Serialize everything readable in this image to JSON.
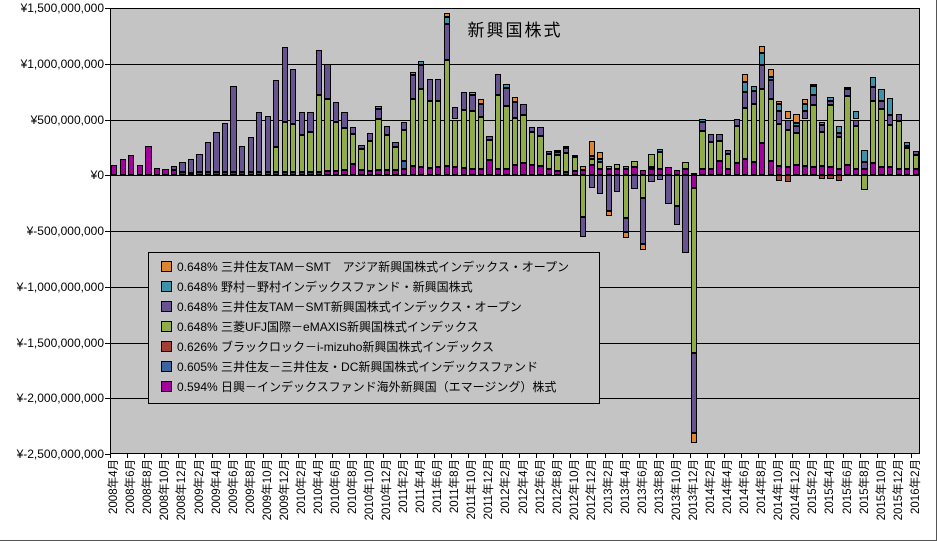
{
  "title": "新興国株式",
  "y_axis": {
    "prefix": "¥",
    "labels": [
      "¥1,500,000,000",
      "¥1,000,000,000",
      "¥500,000,000",
      "¥0",
      "¥-500,000,000",
      "¥-1,000,000,000",
      "¥-1,500,000,000",
      "¥-2,000,000,000",
      "¥-2,500,000,000"
    ],
    "values": [
      1500,
      1000,
      500,
      0,
      -500,
      -1000,
      -1500,
      -2000,
      -2500
    ]
  },
  "x_axis": {
    "label_every_n_categories": 2,
    "first_label": "2008年4月",
    "last_label": "2016年2月"
  },
  "legend": [
    {
      "rate": "0.648%",
      "name": "三井住友TAM－SMT　アジア新興国株式インデックス・オープン",
      "color": "#DE8531",
      "series_key": "smt_asia"
    },
    {
      "rate": "0.648%",
      "name": "野村－野村インデックスファンド・新興国株式",
      "color": "#3B92A9",
      "series_key": "nomura"
    },
    {
      "rate": "0.648%",
      "name": "三井住友TAM－SMT新興国株式インデックス・オープン",
      "color": "#66538F",
      "series_key": "smt"
    },
    {
      "rate": "0.648%",
      "name": "三菱UFJ国際－eMAXIS新興国株式インデックス",
      "color": "#8FAC49",
      "series_key": "emaxis"
    },
    {
      "rate": "0.626%",
      "name": "ブラックロック－i-mizuho新興国株式インデックス",
      "color": "#A43E35",
      "series_key": "mizuho"
    },
    {
      "rate": "0.605%",
      "name": "三井住友－三井住友・DC新興国株式インデックスファンド",
      "color": "#3C65A0",
      "series_key": "dc"
    },
    {
      "rate": "0.594%",
      "name": "日興－インデックスファンド海外新興国（エマージング）株式",
      "color": "#A4009B",
      "series_key": "nikko"
    }
  ],
  "chart_data": {
    "type": "bar",
    "stacked": true,
    "unit": "JPY millions (¥1,000,000)",
    "title": "新興国株式",
    "ylim_millions": [
      -2500,
      1500
    ],
    "grid": true,
    "plot_background": "#C4C4C4",
    "legend_position": "inside-left-middle",
    "categories": [
      "2008年4月",
      "2008年5月",
      "2008年6月",
      "2008年7月",
      "2008年8月",
      "2008年9月",
      "2008年10月",
      "2008年11月",
      "2008年12月",
      "2009年1月",
      "2009年2月",
      "2009年3月",
      "2009年4月",
      "2009年5月",
      "2009年6月",
      "2009年7月",
      "2009年8月",
      "2009年9月",
      "2009年10月",
      "2009年11月",
      "2009年12月",
      "2010年1月",
      "2010年2月",
      "2010年3月",
      "2010年4月",
      "2010年5月",
      "2010年6月",
      "2010年7月",
      "2010年8月",
      "2010年9月",
      "2010年10月",
      "2010年11月",
      "2010年12月",
      "2011年1月",
      "2011年2月",
      "2011年3月",
      "2011年4月",
      "2011年5月",
      "2011年6月",
      "2011年7月",
      "2011年8月",
      "2011年9月",
      "2011年10月",
      "2011年11月",
      "2011年12月",
      "2012年1月",
      "2012年2月",
      "2012年3月",
      "2012年4月",
      "2012年5月",
      "2012年6月",
      "2012年7月",
      "2012年8月",
      "2012年9月",
      "2012年10月",
      "2012年11月",
      "2012年12月",
      "2013年1月",
      "2013年2月",
      "2013年3月",
      "2013年4月",
      "2013年5月",
      "2013年6月",
      "2013年7月",
      "2013年8月",
      "2013年9月",
      "2013年10月",
      "2013年11月",
      "2013年12月",
      "2014年1月",
      "2014年2月",
      "2014年3月",
      "2014年4月",
      "2014年5月",
      "2014年6月",
      "2014年7月",
      "2014年8月",
      "2014年9月",
      "2014年10月",
      "2014年11月",
      "2014年12月",
      "2015年1月",
      "2015年2月",
      "2015年3月",
      "2015年4月",
      "2015年5月",
      "2015年6月",
      "2015年7月",
      "2015年8月",
      "2015年9月",
      "2015年10月",
      "2015年11月",
      "2015年12月",
      "2016年1月",
      "2016年2月"
    ],
    "series": [
      {
        "name": "日興－インデックスファンド海外新興国（エマージング）株式",
        "color": "#A4009B",
        "values": [
          90,
          145,
          185,
          95,
          265,
          65,
          55,
          45,
          25,
          20,
          25,
          25,
          25,
          30,
          30,
          25,
          25,
          25,
          25,
          30,
          30,
          30,
          25,
          25,
          30,
          35,
          40,
          45,
          100,
          45,
          40,
          45,
          45,
          50,
          60,
          85,
          70,
          65,
          70,
          80,
          70,
          65,
          60,
          55,
          140,
          60,
          60,
          90,
          110,
          90,
          80,
          60,
          35,
          30,
          40,
          50,
          90,
          60,
          60,
          60,
          60,
          70,
          50,
          60,
          60,
          70,
          50,
          60,
          -110,
          60,
          60,
          130,
          60,
          110,
          150,
          120,
          290,
          130,
          80,
          70,
          90,
          80,
          70,
          80,
          70,
          60,
          90,
          60,
          60,
          110,
          70,
          70,
          60,
          60,
          60
        ]
      },
      {
        "name": "三井住友－三井住友・DC新興国株式インデックスファンド",
        "color": "#3C65A0",
        "values": [
          0,
          0,
          0,
          0,
          0,
          0,
          0,
          0,
          0,
          0,
          0,
          0,
          0,
          0,
          0,
          0,
          0,
          0,
          0,
          0,
          0,
          0,
          0,
          0,
          0,
          0,
          0,
          0,
          0,
          0,
          0,
          0,
          0,
          0,
          70,
          0,
          0,
          0,
          0,
          0,
          0,
          0,
          0,
          0,
          0,
          0,
          0,
          0,
          0,
          0,
          0,
          0,
          0,
          0,
          0,
          0,
          0,
          0,
          0,
          0,
          0,
          0,
          0,
          0,
          0,
          0,
          0,
          0,
          0,
          0,
          0,
          0,
          0,
          0,
          0,
          0,
          0,
          0,
          0,
          0,
          0,
          0,
          0,
          0,
          0,
          0,
          0,
          0,
          0,
          0,
          0,
          0,
          0,
          0,
          0
        ]
      },
      {
        "name": "ブラックロック－i-mizuho新興国株式インデックス",
        "color": "#A43E35",
        "values": [
          0,
          0,
          0,
          0,
          0,
          0,
          0,
          0,
          0,
          0,
          0,
          0,
          0,
          0,
          0,
          0,
          0,
          0,
          0,
          0,
          0,
          0,
          0,
          0,
          0,
          0,
          0,
          0,
          0,
          0,
          0,
          0,
          0,
          0,
          0,
          0,
          0,
          0,
          0,
          0,
          0,
          0,
          0,
          0,
          0,
          0,
          0,
          0,
          0,
          0,
          0,
          0,
          0,
          0,
          0,
          0,
          0,
          0,
          0,
          0,
          0,
          0,
          0,
          15,
          0,
          0,
          0,
          0,
          0,
          0,
          0,
          0,
          0,
          0,
          0,
          0,
          0,
          0,
          -50,
          -60,
          0,
          0,
          0,
          -30,
          -30,
          -50,
          0,
          0,
          0,
          0,
          0,
          0,
          0,
          0,
          0
        ]
      },
      {
        "name": "三菱UFJ国際－eMAXIS新興国株式インデックス",
        "color": "#8FAC49",
        "values": [
          0,
          0,
          0,
          0,
          0,
          0,
          0,
          0,
          0,
          0,
          0,
          0,
          0,
          0,
          0,
          0,
          0,
          0,
          0,
          220,
          450,
          430,
          340,
          360,
          690,
          645,
          440,
          380,
          270,
          190,
          265,
          460,
          320,
          200,
          280,
          600,
          700,
          600,
          600,
          950,
          430,
          520,
          520,
          470,
          180,
          660,
          560,
          420,
          430,
          300,
          270,
          130,
          150,
          170,
          120,
          -370,
          60,
          60,
          20,
          40,
          -380,
          60,
          -200,
          120,
          150,
          0,
          -280,
          60,
          -1480,
          340,
          240,
          180,
          130,
          330,
          450,
          520,
          480,
          550,
          380,
          340,
          290,
          420,
          560,
          310,
          560,
          280,
          620,
          380,
          -130,
          560,
          520,
          380,
          430,
          180,
          120
        ]
      },
      {
        "name": "三井住友TAM－SMT新興国株式インデックス・オープン",
        "color": "#66538F",
        "values": [
          0,
          0,
          0,
          0,
          0,
          0,
          0,
          40,
          95,
          130,
          165,
          275,
          365,
          440,
          770,
          235,
          315,
          540,
          510,
          600,
          670,
          490,
          200,
          180,
          400,
          320,
          175,
          140,
          60,
          35,
          70,
          85,
          75,
          50,
          70,
          210,
          215,
          195,
          195,
          330,
          110,
          160,
          140,
          115,
          30,
          185,
          160,
          150,
          100,
          40,
          80,
          30,
          25,
          40,
          25,
          -180,
          -110,
          -170,
          -320,
          -150,
          -130,
          -120,
          -420,
          -60,
          -40,
          -260,
          -170,
          -700,
          -720,
          80,
          70,
          60,
          40,
          65,
          150,
          120,
          220,
          170,
          120,
          90,
          60,
          80,
          90,
          60,
          40,
          40,
          60,
          60,
          60,
          120,
          80,
          90,
          60,
          20,
          40
        ]
      },
      {
        "name": "野村－野村インデックスファンド・新興国株式",
        "color": "#3B92A9",
        "values": [
          0,
          0,
          0,
          0,
          0,
          0,
          0,
          0,
          0,
          0,
          0,
          0,
          0,
          0,
          0,
          0,
          0,
          0,
          0,
          0,
          0,
          0,
          0,
          0,
          0,
          0,
          0,
          0,
          0,
          0,
          0,
          35,
          0,
          0,
          0,
          30,
          40,
          0,
          0,
          60,
          0,
          0,
          0,
          0,
          0,
          0,
          35,
          0,
          0,
          0,
          0,
          0,
          20,
          25,
          0,
          0,
          25,
          25,
          0,
          0,
          20,
          0,
          0,
          0,
          25,
          0,
          0,
          0,
          20,
          25,
          0,
          0,
          0,
          0,
          90,
          40,
          110,
          30,
          60,
          0,
          30,
          60,
          80,
          30,
          35,
          60,
          20,
          80,
          110,
          90,
          100,
          150,
          0,
          40,
          0
        ]
      },
      {
        "name": "三井住友TAM－SMT　アジア新興国株式インデックス・オープン",
        "color": "#DE8531",
        "values": [
          0,
          0,
          0,
          0,
          0,
          0,
          0,
          0,
          0,
          0,
          0,
          0,
          0,
          0,
          0,
          0,
          0,
          0,
          0,
          0,
          0,
          0,
          0,
          0,
          0,
          0,
          0,
          0,
          0,
          0,
          0,
          0,
          0,
          0,
          0,
          0,
          0,
          0,
          0,
          35,
          0,
          0,
          25,
          40,
          0,
          0,
          0,
          40,
          0,
          0,
          0,
          0,
          0,
          0,
          0,
          30,
          130,
          60,
          -45,
          0,
          -50,
          0,
          -50,
          0,
          0,
          0,
          0,
          0,
          -90,
          0,
          0,
          0,
          0,
          0,
          65,
          0,
          60,
          70,
          25,
          80,
          80,
          40,
          20,
          0,
          0,
          0,
          0,
          0,
          0,
          0,
          0,
          0,
          0,
          0,
          0
        ]
      }
    ]
  }
}
